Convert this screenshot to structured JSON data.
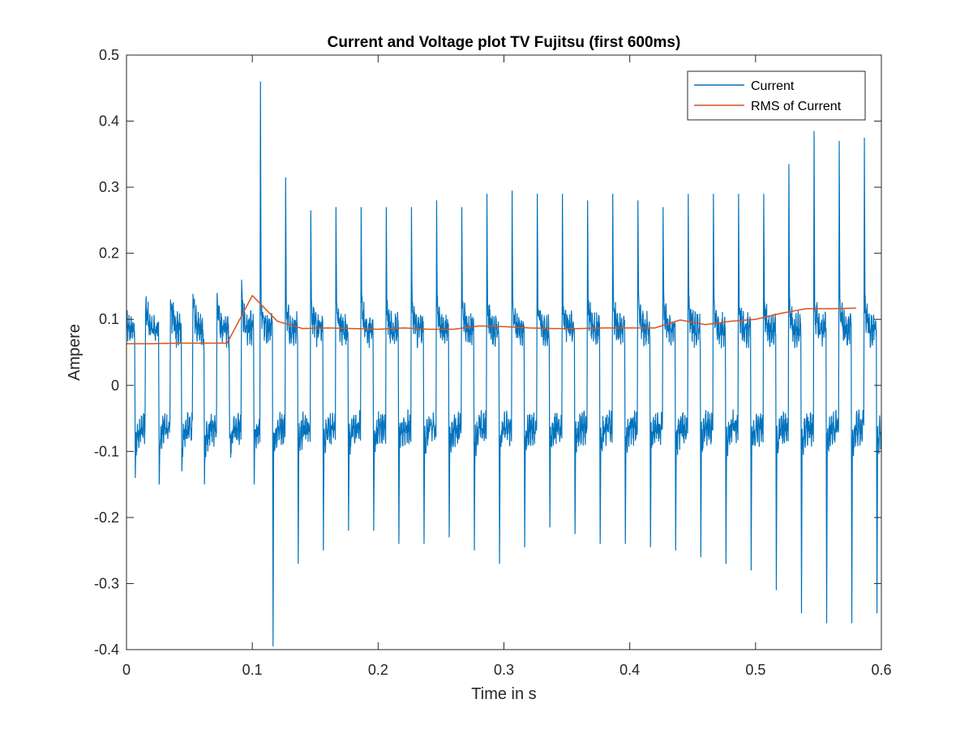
{
  "chart_data": {
    "type": "line",
    "title": "Current and Voltage plot TV Fujitsu (first 600ms)",
    "xlabel": "Time in s",
    "ylabel": "Ampere",
    "xlim": [
      0,
      0.6
    ],
    "ylim": [
      -0.4,
      0.5
    ],
    "x_ticks": [
      0,
      0.1,
      0.2,
      0.3,
      0.4,
      0.5,
      0.6
    ],
    "x_tick_labels": [
      "0",
      "0.1",
      "0.2",
      "0.3",
      "0.4",
      "0.5",
      "0.6"
    ],
    "y_ticks": [
      -0.4,
      -0.3,
      -0.2,
      -0.1,
      0,
      0.1,
      0.2,
      0.3,
      0.4,
      0.5
    ],
    "y_tick_labels": [
      "-0.4",
      "-0.3",
      "-0.2",
      "-0.1",
      "0",
      "0.1",
      "0.2",
      "0.3",
      "0.4",
      "0.5"
    ],
    "grid": false,
    "legend_position": "top-right",
    "series": [
      {
        "name": "Current",
        "color": "#0072BD",
        "waveform": {
          "fundamental_hz": 50,
          "baseline_upper": 0.085,
          "baseline_lower": -0.065,
          "spike_times": [
            0.007,
            0.0152,
            0.026,
            0.035,
            0.044,
            0.0528,
            0.062,
            0.072,
            0.082,
            0.0915,
            0.1015,
            0.1065,
            0.1165,
            0.1265,
            0.1365,
            0.1465,
            0.1565,
            0.1665,
            0.1765,
            0.1865,
            0.1965,
            0.2065,
            0.2165,
            0.2265,
            0.2365,
            0.2465,
            0.2565,
            0.2665,
            0.2765,
            0.2865,
            0.2965,
            0.3065,
            0.3165,
            0.3265,
            0.3365,
            0.3465,
            0.3565,
            0.3665,
            0.3765,
            0.3865,
            0.3965,
            0.4065,
            0.4165,
            0.4265,
            0.4365,
            0.4465,
            0.4565,
            0.4665,
            0.4765,
            0.4865,
            0.4965,
            0.5065,
            0.5165,
            0.5265,
            0.5365,
            0.5465,
            0.5565,
            0.5665,
            0.5765,
            0.5865,
            0.5965
          ],
          "spike_peaks": [
            -0.14,
            0.12,
            -0.15,
            0.13,
            -0.13,
            0.14,
            -0.15,
            0.14,
            -0.08,
            0.16,
            -0.15,
            0.46,
            -0.395,
            0.315,
            -0.27,
            0.265,
            -0.25,
            0.27,
            -0.22,
            0.27,
            -0.22,
            0.27,
            -0.24,
            0.27,
            -0.24,
            0.28,
            -0.23,
            0.27,
            -0.25,
            0.29,
            -0.27,
            0.295,
            -0.245,
            0.29,
            -0.215,
            0.29,
            -0.225,
            0.28,
            -0.24,
            0.29,
            -0.24,
            0.28,
            -0.245,
            0.27,
            -0.25,
            0.29,
            -0.26,
            0.29,
            -0.27,
            0.29,
            -0.28,
            0.29,
            -0.31,
            0.335,
            -0.345,
            0.385,
            -0.36,
            0.37,
            -0.36,
            0.375,
            -0.345
          ]
        }
      },
      {
        "name": "RMS of Current",
        "color": "#D95319",
        "x": [
          0,
          0.02,
          0.04,
          0.06,
          0.08,
          0.1,
          0.12,
          0.14,
          0.16,
          0.18,
          0.2,
          0.22,
          0.24,
          0.26,
          0.28,
          0.3,
          0.32,
          0.34,
          0.36,
          0.38,
          0.4,
          0.42,
          0.44,
          0.46,
          0.48,
          0.5,
          0.52,
          0.54,
          0.56,
          0.58
        ],
        "y": [
          0.063,
          0.063,
          0.064,
          0.064,
          0.064,
          0.136,
          0.097,
          0.086,
          0.087,
          0.086,
          0.085,
          0.087,
          0.085,
          0.085,
          0.09,
          0.089,
          0.087,
          0.086,
          0.086,
          0.087,
          0.087,
          0.087,
          0.099,
          0.092,
          0.097,
          0.1,
          0.109,
          0.116,
          0.116,
          0.117
        ]
      }
    ]
  }
}
